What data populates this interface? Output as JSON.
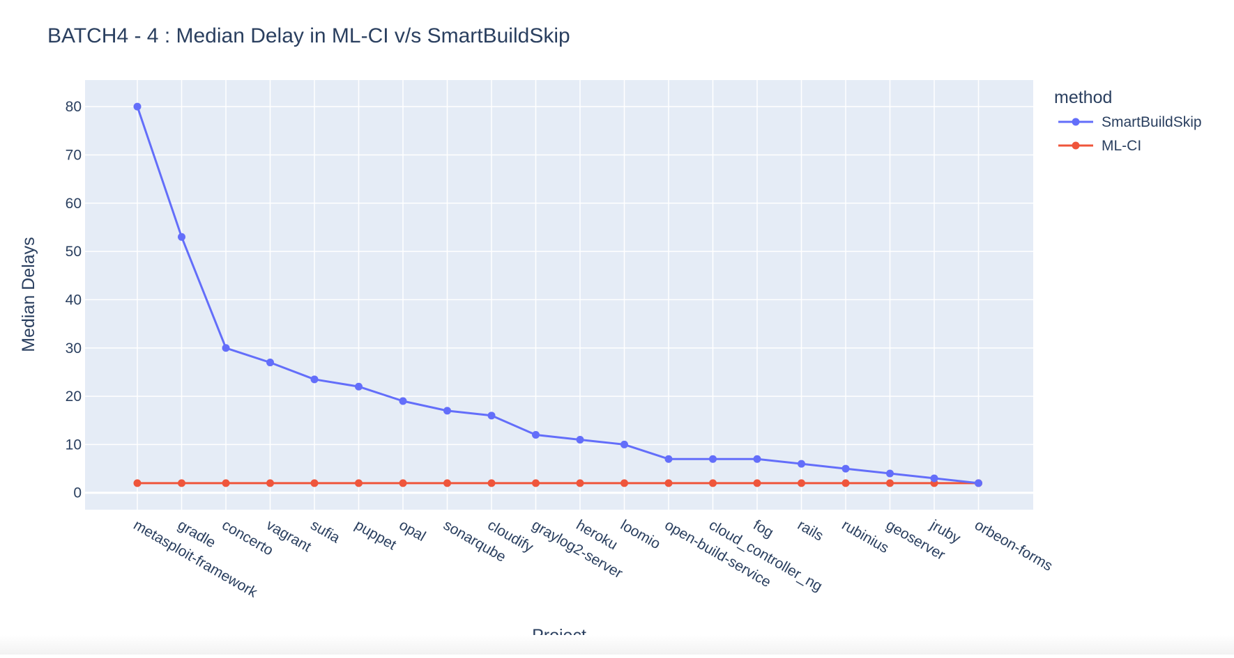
{
  "chart_data": {
    "type": "line",
    "title": "BATCH4 - 4 : Median Delay in ML-CI v/s SmartBuildSkip",
    "xlabel": "Project",
    "ylabel": "Median Delays",
    "legend_title": "method",
    "legend_position": "top-right",
    "grid": true,
    "ylim": [
      -3.5,
      85.5
    ],
    "yticks": [
      0,
      10,
      20,
      30,
      40,
      50,
      60,
      70,
      80
    ],
    "categories": [
      "metasploit-framework",
      "gradle",
      "concerto",
      "vagrant",
      "sufia",
      "puppet",
      "opal",
      "sonarqube",
      "cloudify",
      "graylog2-server",
      "heroku",
      "loomio",
      "open-build-service",
      "cloud_controller_ng",
      "fog",
      "rails",
      "rubinius",
      "geoserver",
      "jruby",
      "orbeon-forms"
    ],
    "series": [
      {
        "name": "SmartBuildSkip",
        "color": "#636efa",
        "values": [
          80,
          53,
          30,
          27,
          23.5,
          22,
          19,
          17,
          16,
          12,
          11,
          10,
          7,
          7,
          7,
          6,
          5,
          4,
          3,
          2
        ]
      },
      {
        "name": "ML-CI",
        "color": "#ef553b",
        "values": [
          2,
          2,
          2,
          2,
          2,
          2,
          2,
          2,
          2,
          2,
          2,
          2,
          2,
          2,
          2,
          2,
          2,
          2,
          2,
          2
        ]
      }
    ],
    "colors": {
      "plot_background": "#e5ecf6",
      "grid": "#ffffff",
      "text": "#2a3f5f"
    }
  }
}
